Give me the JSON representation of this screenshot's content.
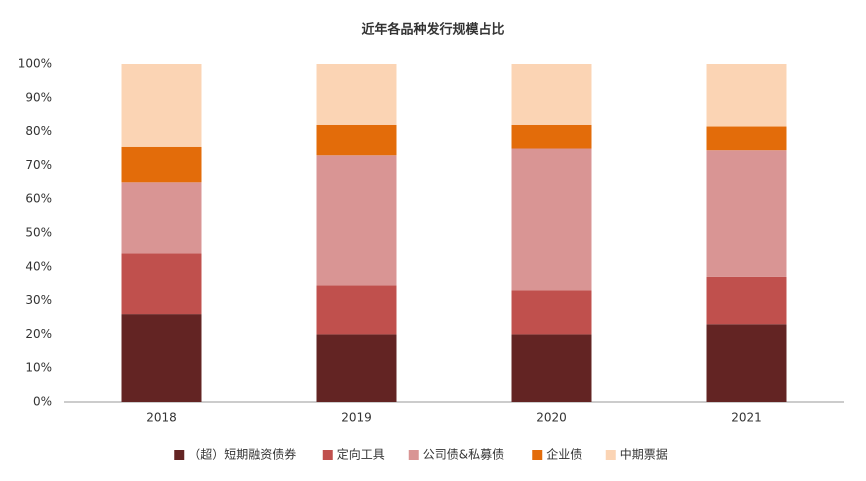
{
  "chart_data": {
    "type": "stacked_bar",
    "title": "近年各品种发行规模占比",
    "categories": [
      "2018",
      "2019",
      "2020",
      "2021"
    ],
    "series": [
      {
        "name": "（超）短期融资债券",
        "color": "#632423",
        "values": [
          26,
          20,
          20,
          23
        ]
      },
      {
        "name": "定向工具",
        "color": "#c0504d",
        "values": [
          18,
          14.5,
          13,
          14
        ]
      },
      {
        "name": "公司债&私募债",
        "color": "#d99594",
        "values": [
          21,
          38.5,
          42,
          37.5
        ]
      },
      {
        "name": "企业债",
        "color": "#e36c0a",
        "values": [
          10.5,
          9,
          7,
          7
        ]
      },
      {
        "name": "中期票据",
        "color": "#fbd4b4",
        "values": [
          24.5,
          18,
          18,
          18.5
        ]
      }
    ],
    "ylim": [
      0,
      100
    ],
    "yticks": [
      {
        "value": 0,
        "label": "0%"
      },
      {
        "value": 10,
        "label": "10%"
      },
      {
        "value": 20,
        "label": "20%"
      },
      {
        "value": 30,
        "label": "30%"
      },
      {
        "value": 40,
        "label": "40%"
      },
      {
        "value": 50,
        "label": "50%"
      },
      {
        "value": 60,
        "label": "60%"
      },
      {
        "value": 70,
        "label": "70%"
      },
      {
        "value": 80,
        "label": "80%"
      },
      {
        "value": 90,
        "label": "90%"
      },
      {
        "value": 100,
        "label": "100%"
      }
    ],
    "legend": "bottom"
  }
}
